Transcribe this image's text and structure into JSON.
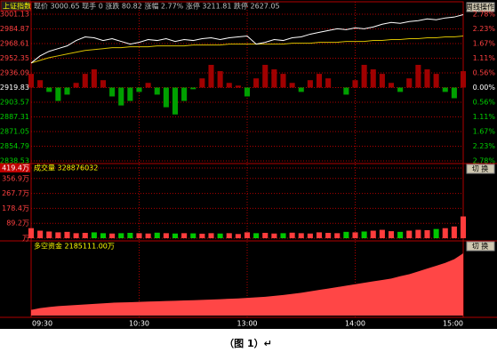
{
  "chart_data": {
    "title": "上证指数",
    "caption": "（图 1）↵",
    "up_color": "#ff3c3c",
    "down_color": "#00c800",
    "x": [
      0,
      5,
      10,
      15,
      20,
      25,
      30,
      35,
      40,
      45,
      50,
      55,
      60,
      65,
      70,
      75,
      80,
      85,
      90,
      95,
      100,
      105,
      110,
      115,
      120,
      125,
      130,
      135,
      140,
      145,
      150,
      155,
      160,
      165,
      170,
      175,
      180,
      185,
      190,
      195,
      200,
      205,
      210,
      215,
      220,
      225,
      230,
      235,
      240
    ],
    "xlim": [
      0,
      240
    ],
    "xticks": [
      {
        "value": 0,
        "label": "09:30"
      },
      {
        "value": 60,
        "label": "10:30"
      },
      {
        "value": 120,
        "label": "13:00"
      },
      {
        "value": 180,
        "label": "14:00"
      },
      {
        "value": 240,
        "label": "15:00"
      }
    ],
    "panels": [
      {
        "type": "line",
        "header": "现价 3000.65  现手 0  涨跌 80.82  涨幅 2.77%  涨停 3211.81  跌停 2627.05",
        "button": "周线操作",
        "ylim": [
          2838.53,
          3001.13
        ],
        "yticks": [
          3001.13,
          2984.87,
          2968.61,
          2952.35,
          2936.09,
          2919.83,
          2903.57,
          2887.31,
          2871.05,
          2854.79,
          2838.53
        ],
        "y2lim": [
          -2.78,
          2.78
        ],
        "y2ticks": [
          {
            "value": 2.78,
            "label": "2.78%"
          },
          {
            "value": 2.23,
            "label": "2.23%"
          },
          {
            "value": 1.67,
            "label": "1.67%"
          },
          {
            "value": 1.11,
            "label": "1.11%"
          },
          {
            "value": 0.56,
            "label": "0.56%"
          },
          {
            "value": 0,
            "label": "0.00%"
          },
          {
            "value": -0.56,
            "label": "0.56%"
          },
          {
            "value": -1.11,
            "label": "1.11%"
          },
          {
            "value": -1.67,
            "label": "1.67%"
          },
          {
            "value": -2.23,
            "label": "2.23%"
          },
          {
            "value": -2.78,
            "label": "2.78%"
          }
        ],
        "series": [
          {
            "type": "bar",
            "values": [
              2935,
              2928,
              2915,
              2905,
              2912,
              2925,
              2935,
              2940,
              2928,
              2910,
              2900,
              2905,
              2915,
              2925,
              2912,
              2898,
              2890,
              2905,
              2918,
              2930,
              2945,
              2938,
              2925,
              2922,
              2910,
              2930,
              2945,
              2940,
              2935,
              2925,
              2915,
              2928,
              2935,
              2930,
              2920,
              2912,
              2928,
              2945,
              2940,
              2935,
              2925,
              2915,
              2930,
              2945,
              2940,
              2935,
              2915,
              2908,
              2938
            ]
          },
          {
            "type": "line",
            "color": "#d8c000",
            "values": [
              2947,
              2950,
              2953,
              2955,
              2957,
              2959,
              2961,
              2962,
              2963,
              2964,
              2964,
              2965,
              2965,
              2965,
              2966,
              2966,
              2966,
              2966,
              2967,
              2967,
              2967,
              2967,
              2968,
              2968,
              2968,
              2968,
              2968,
              2968,
              2968,
              2969,
              2969,
              2969,
              2970,
              2970,
              2970,
              2971,
              2971,
              2971,
              2972,
              2972,
              2973,
              2973,
              2974,
              2974,
              2975,
              2975,
              2976,
              2976,
              2977
            ]
          },
          {
            "type": "line",
            "color": "#ffffff",
            "values": [
              2947,
              2955,
              2960,
              2963,
              2966,
              2972,
              2976,
              2975,
              2972,
              2974,
              2971,
              2968,
              2970,
              2973,
              2972,
              2974,
              2971,
              2973,
              2972,
              2974,
              2975,
              2973,
              2975,
              2976,
              2977,
              2968,
              2970,
              2973,
              2972,
              2975,
              2976,
              2979,
              2981,
              2983,
              2985,
              2984,
              2986,
              2985,
              2987,
              2990,
              2992,
              2991,
              2993,
              2994,
              2996,
              2995,
              2997,
              2998,
              3000.65
            ]
          }
        ]
      },
      {
        "type": "bar",
        "header": "成交量  328876032",
        "button": "切 换",
        "ylim": [
          0,
          419.4
        ],
        "yticks": [
          {
            "value": 419.4,
            "label": "419.4万"
          },
          {
            "value": 356.9,
            "label": "356.9万"
          },
          {
            "value": 267.7,
            "label": "267.7万"
          },
          {
            "value": 178.4,
            "label": "178.4万"
          },
          {
            "value": 89.2,
            "label": "89.2万"
          },
          {
            "value": 0,
            "label": "万"
          }
        ],
        "values": [
          60,
          45,
          40,
          35,
          38,
          30,
          32,
          35,
          30,
          28,
          30,
          32,
          30,
          28,
          33,
          30,
          28,
          30,
          29,
          27,
          30,
          28,
          30,
          25,
          35,
          30,
          32,
          28,
          30,
          33,
          30,
          28,
          35,
          32,
          30,
          38,
          35,
          40,
          45,
          50,
          42,
          38,
          45,
          50,
          48,
          55,
          60,
          70,
          130
        ]
      },
      {
        "type": "area",
        "header": "多空资金  2185111.00万",
        "button": "切 换",
        "color": "#ff4646",
        "values": [
          200000,
          260000,
          300000,
          330000,
          350000,
          370000,
          390000,
          410000,
          430000,
          450000,
          460000,
          470000,
          480000,
          490000,
          500000,
          510000,
          520000,
          530000,
          540000,
          550000,
          560000,
          575000,
          590000,
          600000,
          620000,
          640000,
          660000,
          690000,
          720000,
          760000,
          800000,
          850000,
          900000,
          950000,
          1000000,
          1050000,
          1100000,
          1150000,
          1200000,
          1250000,
          1300000,
          1380000,
          1450000,
          1550000,
          1650000,
          1750000,
          1850000,
          1980000,
          2185111
        ]
      }
    ]
  }
}
